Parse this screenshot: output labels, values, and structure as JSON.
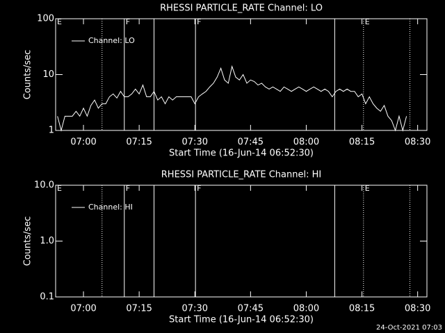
{
  "chart_data": [
    {
      "type": "line",
      "title": "RHESSI PARTICLE_RATE Channel: LO",
      "x_label": "Start Time (16-Jun-14 06:52:30)",
      "y_label": "Counts/sec",
      "log_y": true,
      "ylim": [
        1,
        100
      ],
      "yticks": [
        1,
        10,
        100
      ],
      "xlim": [
        "06:52:30",
        "08:32:30"
      ],
      "xticks": [
        "07:00",
        "07:15",
        "07:30",
        "07:45",
        "08:00",
        "08:15",
        "08:30"
      ],
      "legend": "upper left",
      "x": [
        "06:53",
        "06:54",
        "06:55",
        "06:56",
        "06:57",
        "06:58",
        "06:59",
        "07:00",
        "07:01",
        "07:02",
        "07:03",
        "07:04",
        "07:05",
        "07:06",
        "07:07",
        "07:08",
        "07:09",
        "07:10",
        "07:11",
        "07:12",
        "07:13",
        "07:14",
        "07:15",
        "07:16",
        "07:17",
        "07:18",
        "07:19",
        "07:20",
        "07:21",
        "07:22",
        "07:23",
        "07:24",
        "07:25",
        "07:26",
        "07:27",
        "07:28",
        "07:29",
        "07:30",
        "07:31",
        "07:32",
        "07:33",
        "07:34",
        "07:35",
        "07:36",
        "07:37",
        "07:38",
        "07:39",
        "07:40",
        "07:41",
        "07:42",
        "07:43",
        "07:44",
        "07:45",
        "07:46",
        "07:47",
        "07:48",
        "07:49",
        "07:50",
        "07:51",
        "07:52",
        "07:53",
        "07:54",
        "07:55",
        "07:56",
        "07:57",
        "07:58",
        "07:59",
        "08:00",
        "08:01",
        "08:02",
        "08:03",
        "08:04",
        "08:05",
        "08:06",
        "08:07",
        "08:08",
        "08:09",
        "08:10",
        "08:11",
        "08:12",
        "08:13",
        "08:14",
        "08:15",
        "08:16",
        "08:17",
        "08:18",
        "08:19",
        "08:20",
        "08:21",
        "08:22",
        "08:23",
        "08:24",
        "08:25",
        "08:26",
        "08:27"
      ],
      "series": [
        {
          "name": "Channel: LO",
          "color": "#ffffff",
          "values": [
            1.8,
            1,
            1.8,
            1.8,
            1.8,
            2.2,
            1.8,
            2.5,
            1.8,
            2.8,
            3.5,
            2.5,
            3,
            3,
            4,
            4.5,
            3.8,
            5,
            4,
            4,
            4.5,
            5.5,
            4.5,
            6.5,
            4,
            4,
            5,
            3.5,
            4,
            3,
            4,
            3.5,
            4,
            4,
            4,
            4,
            4,
            3,
            4,
            4.5,
            5,
            6,
            7,
            9,
            13,
            8,
            7,
            14,
            9,
            8,
            10,
            7,
            8,
            7.5,
            6.5,
            7,
            6,
            5.5,
            6,
            5.5,
            5,
            6,
            5.5,
            5,
            5.5,
            6,
            5.5,
            5,
            5.5,
            6,
            5.5,
            5,
            5.5,
            5,
            4,
            5,
            5.5,
            5,
            5.5,
            5,
            5,
            4,
            4.5,
            3,
            4,
            3,
            2.5,
            2.2,
            2.8,
            1.8,
            1.5,
            1,
            1.8,
            1,
            1.8
          ]
        }
      ],
      "annotations": [
        {
          "x": "06:52:30",
          "style": "solid",
          "label": "E"
        },
        {
          "x": "07:05",
          "style": "dotted"
        },
        {
          "x": "07:11",
          "style": "solid",
          "label": "F"
        },
        {
          "x": "07:19",
          "style": "solid"
        },
        {
          "x": "07:30:10",
          "style": "solid",
          "label": "F"
        },
        {
          "x": "08:07:40",
          "style": "solid"
        },
        {
          "x": "08:15:25",
          "style": "dotted",
          "label": "E"
        },
        {
          "x": "08:27:55",
          "style": "dotted"
        }
      ]
    },
    {
      "type": "line",
      "title": "RHESSI PARTICLE_RATE Channel: HI",
      "x_label": "Start Time (16-Jun-14 06:52:30)",
      "y_label": "Counts/sec",
      "log_y": true,
      "ylim": [
        0.1,
        10
      ],
      "yticks": [
        0.1,
        {
          "value": 1,
          "label": "1.0"
        },
        {
          "value": 10,
          "label": "10.0"
        }
      ],
      "xlim": [
        "06:52:30",
        "08:32:30"
      ],
      "xticks": [
        "07:00",
        "07:15",
        "07:30",
        "07:45",
        "08:00",
        "08:15",
        "08:30"
      ],
      "legend": "upper left",
      "x": [],
      "series": [
        {
          "name": "Channel: HI",
          "color": "#ffffff",
          "values": []
        }
      ],
      "annotations": [
        {
          "x": "06:52:30",
          "style": "solid",
          "label": "E"
        },
        {
          "x": "07:05",
          "style": "dotted"
        },
        {
          "x": "07:11",
          "style": "solid",
          "label": "F"
        },
        {
          "x": "07:19",
          "style": "solid"
        },
        {
          "x": "07:30:10",
          "style": "solid",
          "label": "F"
        },
        {
          "x": "08:07:40",
          "style": "solid"
        },
        {
          "x": "08:15:25",
          "style": "dotted",
          "label": "E"
        },
        {
          "x": "08:27:55",
          "style": "dotted"
        }
      ]
    }
  ],
  "footer": "24-Oct-2021 07:03"
}
